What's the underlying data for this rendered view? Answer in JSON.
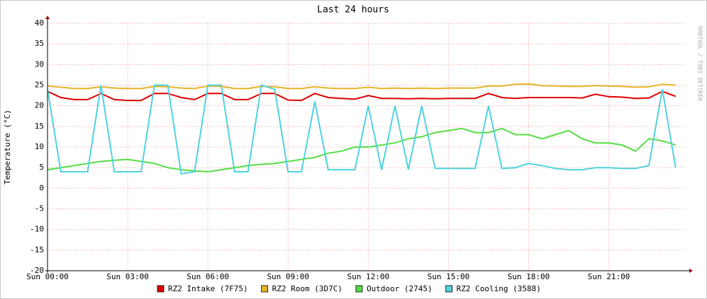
{
  "chart_data": {
    "type": "line",
    "title": "Last 24 hours",
    "y_label": "Temperature (°C)",
    "watermark": "RRDTOOL / TOBI OETIKER",
    "x": [
      0,
      0.5,
      1,
      1.5,
      2,
      2.5,
      3,
      3.5,
      4,
      4.5,
      5,
      5.5,
      6,
      6.5,
      7,
      7.5,
      8,
      8.5,
      9,
      9.5,
      10,
      10.5,
      11,
      11.5,
      12,
      12.5,
      13,
      13.5,
      14,
      14.5,
      15,
      15.5,
      16,
      16.5,
      17,
      17.5,
      18,
      18.5,
      19,
      19.5,
      20,
      20.5,
      21,
      21.5,
      22,
      22.5,
      23,
      23.5
    ],
    "xlim": [
      0,
      23.85
    ],
    "xticks": [
      {
        "value": 0,
        "label": "Sun 00:00"
      },
      {
        "value": 3,
        "label": "Sun 03:00"
      },
      {
        "value": 6,
        "label": "Sun 06:00"
      },
      {
        "value": 9,
        "label": "Sun 09:00"
      },
      {
        "value": 12,
        "label": "Sun 12:00"
      },
      {
        "value": 15,
        "label": "Sun 15:00"
      },
      {
        "value": 18,
        "label": "Sun 18:00"
      },
      {
        "value": 21,
        "label": "Sun 21:00"
      }
    ],
    "ylim": [
      -20,
      40
    ],
    "yticks": [
      -20,
      -15,
      -10,
      -5,
      0,
      5,
      10,
      15,
      20,
      25,
      30,
      35,
      40
    ],
    "grid": true,
    "series": [
      {
        "name": "RZ2 Intake (7F75)",
        "color": "#dd0000",
        "values": [
          23.5,
          22,
          21.5,
          21.5,
          23,
          21.5,
          21.3,
          21.3,
          23,
          23,
          22,
          21.5,
          23,
          23,
          21.5,
          21.5,
          23,
          23,
          21.4,
          21.3,
          23,
          22,
          21.8,
          21.6,
          22.5,
          21.8,
          21.8,
          21.7,
          21.8,
          21.7,
          21.8,
          21.8,
          21.8,
          23,
          22,
          21.8,
          22,
          22,
          22,
          22,
          21.9,
          22.8,
          22.2,
          22.1,
          21.8,
          21.9,
          23.5,
          22.3
        ]
      },
      {
        "name": "RZ2 Room (3D7C)",
        "color": "#e6b428",
        "values": [
          24.8,
          24.5,
          24.2,
          24.2,
          24.6,
          24.3,
          24.2,
          24.2,
          24.7,
          24.6,
          24.3,
          24.2,
          24.8,
          24.7,
          24.2,
          24.2,
          24.7,
          24.6,
          24.2,
          24.2,
          24.6,
          24.3,
          24.2,
          24.2,
          24.5,
          24.2,
          24.3,
          24.2,
          24.3,
          24.2,
          24.3,
          24.3,
          24.3,
          24.8,
          24.8,
          25.2,
          25.3,
          24.9,
          24.8,
          24.7,
          24.7,
          24.9,
          24.8,
          24.7,
          24.5,
          24.6,
          25.2,
          25
        ]
      },
      {
        "name": "Outdoor (2745)",
        "color": "#55dd44",
        "values": [
          4.5,
          5,
          5.5,
          6,
          6.5,
          6.8,
          7,
          6.5,
          6,
          5,
          4.5,
          4.2,
          4,
          4.5,
          5,
          5.5,
          5.8,
          6,
          6.5,
          7,
          7.5,
          8.5,
          9,
          10,
          10,
          10.5,
          11,
          12,
          12.5,
          13.5,
          14,
          14.5,
          13.5,
          13.5,
          14.5,
          13,
          13,
          12,
          13,
          14,
          12,
          11,
          11,
          10.5,
          9,
          12,
          11.5,
          10.5
        ]
      },
      {
        "name": "RZ2 Cooling (3588)",
        "color": "#4fd2e0",
        "values": [
          24,
          4,
          4,
          4,
          25,
          4,
          4,
          4,
          25,
          25,
          3.5,
          4,
          25,
          25,
          4,
          4,
          25,
          24,
          4,
          4,
          21,
          4.5,
          4.5,
          4.5,
          20,
          4.5,
          20,
          4.5,
          20,
          4.8,
          4.8,
          4.8,
          4.8,
          20,
          4.8,
          5,
          6,
          5.5,
          4.8,
          4.5,
          4.5,
          5,
          5,
          4.8,
          4.8,
          5.5,
          24,
          5
        ]
      }
    ]
  }
}
